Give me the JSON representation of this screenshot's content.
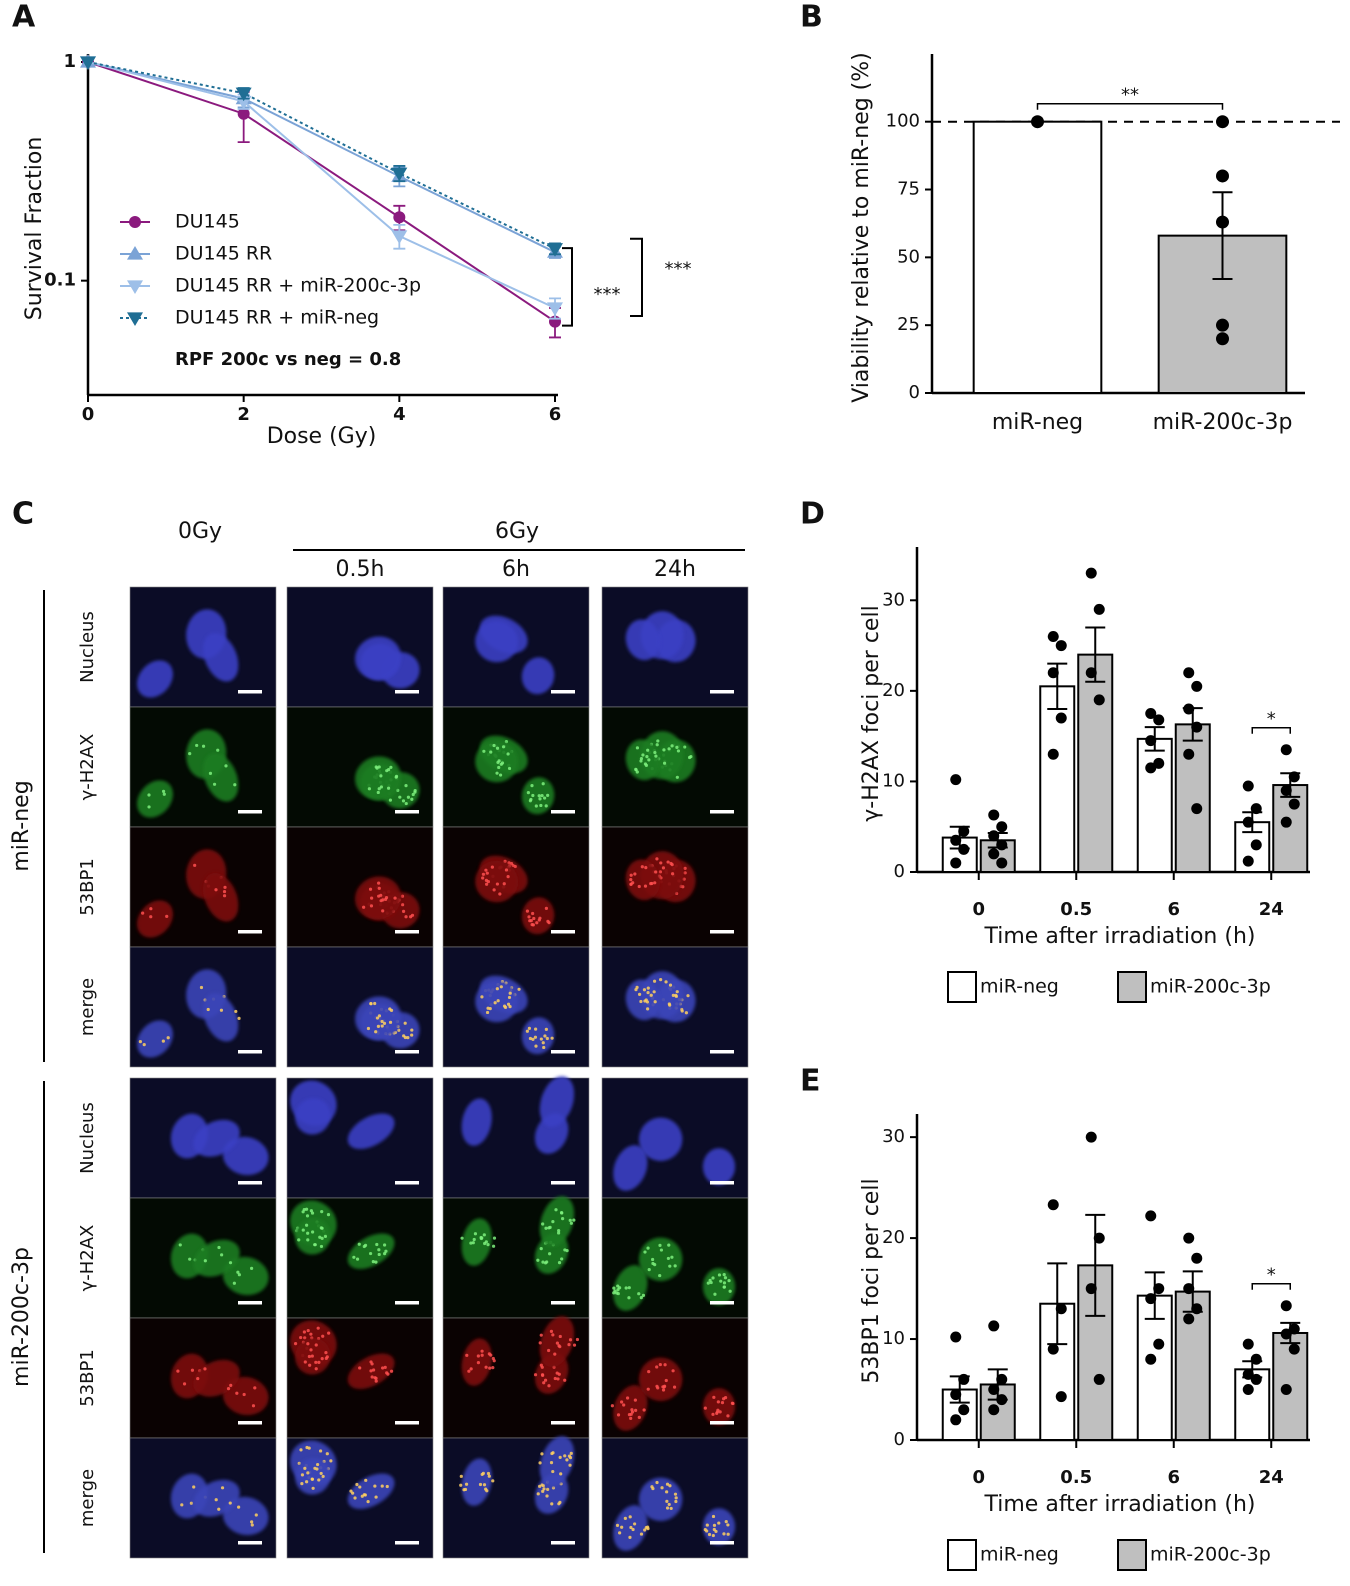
{
  "chart_data": [
    {
      "panel": "A",
      "type": "line",
      "log_y": true,
      "ylabel": "Survival Fraction",
      "xlabel": "Dose (Gy)",
      "x": [
        0,
        2,
        4,
        6
      ],
      "xlim": [
        0,
        6
      ],
      "xticks": [
        0,
        2,
        4,
        6
      ],
      "ylim": [
        0.03,
        1
      ],
      "yticks": [
        1,
        0.1
      ],
      "series": [
        {
          "name": "DU145",
          "color": "#8b1a7e",
          "marker": "circle",
          "dash": "solid",
          "values": [
            1,
            0.58,
            0.195,
            0.065
          ],
          "errors": [
            0,
            0.15,
            0.025,
            0.01
          ]
        },
        {
          "name": "DU145 RR",
          "color": "#7ba3d6",
          "marker": "triangle-up",
          "dash": "solid",
          "values": [
            1,
            0.68,
            0.3,
            0.135
          ],
          "errors": [
            0,
            0.06,
            0.03,
            0.008
          ]
        },
        {
          "name": "DU145 RR + miR-200c-3p",
          "color": "#9dbfe8",
          "marker": "triangle-down",
          "dash": "solid",
          "values": [
            1,
            0.66,
            0.16,
            0.075
          ],
          "errors": [
            0,
            0.05,
            0.02,
            0.008
          ]
        },
        {
          "name": "DU145 RR + miR-neg",
          "color": "#1f6e94",
          "marker": "triangle-down",
          "dash": "dotted",
          "values": [
            1,
            0.72,
            0.31,
            0.14
          ],
          "errors": [
            0,
            0.04,
            0.025,
            0.008
          ]
        }
      ],
      "annotations": [
        "***",
        "***",
        "RPF 200c vs neg = 0.8"
      ]
    },
    {
      "panel": "B",
      "type": "bar",
      "ylabel": "Viability relative to miR-neg (%)",
      "categories": [
        "miR-neg",
        "miR-200c-3p"
      ],
      "values": [
        100,
        58
      ],
      "errors": [
        0,
        16
      ],
      "points": [
        [
          100
        ],
        [
          100,
          80,
          63,
          25,
          20
        ]
      ],
      "colors": [
        "#ffffff",
        "#bfbfbf"
      ],
      "ylim": [
        0,
        122
      ],
      "yticks": [
        0,
        25,
        50,
        75,
        100
      ],
      "reference_line": 100,
      "annotations": [
        "**"
      ]
    },
    {
      "panel": "D",
      "type": "bar",
      "ylabel": "γ-H2AX foci per cell",
      "xlabel": "Time after irradiation (h)",
      "categories": [
        "0",
        "0.5",
        "6",
        "24"
      ],
      "ylim": [
        0,
        35
      ],
      "yticks": [
        0,
        10,
        20,
        30
      ],
      "series": [
        {
          "name": "miR-neg",
          "color": "#ffffff",
          "values": [
            3.8,
            20.5,
            14.7,
            5.5
          ],
          "errors": [
            1.2,
            2.5,
            1.3,
            1.1
          ],
          "points": [
            [
              10.2,
              4.5,
              3.5,
              2.5,
              1
            ],
            [
              26,
              25,
              22,
              17,
              13
            ],
            [
              17.5,
              16.8,
              14.5,
              12,
              11.5
            ],
            [
              9.5,
              7,
              5.5,
              3,
              1.2
            ]
          ]
        },
        {
          "name": "miR-200c-3p",
          "color": "#bfbfbf",
          "values": [
            3.5,
            24,
            16.3,
            9.6
          ],
          "errors": [
            0.8,
            3,
            1.8,
            1.3
          ],
          "points": [
            [
              6.3,
              5,
              4,
              3,
              2,
              1
            ],
            [
              33,
              29,
              22,
              19
            ],
            [
              22,
              20.5,
              18,
              16,
              13,
              7
            ],
            [
              13.5,
              10.5,
              9,
              7.5,
              5.5
            ]
          ]
        }
      ],
      "annotations": [
        "*"
      ]
    },
    {
      "panel": "E",
      "type": "bar",
      "ylabel": "53BP1 foci per cell",
      "xlabel": "Time after irradiation (h)",
      "categories": [
        "0",
        "0.5",
        "6",
        "24"
      ],
      "ylim": [
        0,
        31.5
      ],
      "yticks": [
        0,
        10,
        20,
        30
      ],
      "series": [
        {
          "name": "miR-neg",
          "color": "#ffffff",
          "values": [
            5,
            13.5,
            14.3,
            7
          ],
          "errors": [
            1.3,
            4,
            2.3,
            0.8
          ],
          "points": [
            [
              10.2,
              6,
              4.5,
              3,
              2
            ],
            [
              23.3,
              13,
              9,
              4.3
            ],
            [
              22.2,
              15,
              14,
              9.5,
              8
            ],
            [
              9.5,
              8,
              6.5,
              6,
              5
            ]
          ]
        },
        {
          "name": "miR-200c-3p",
          "color": "#bfbfbf",
          "values": [
            5.5,
            17.3,
            14.7,
            10.6
          ],
          "errors": [
            1.5,
            5,
            2,
            1
          ],
          "points": [
            [
              11.3,
              6,
              5,
              4,
              3
            ],
            [
              30,
              20,
              15,
              6
            ],
            [
              20,
              18,
              15,
              13,
              12
            ],
            [
              13.3,
              11,
              10.5,
              9,
              5
            ]
          ]
        }
      ],
      "annotations": [
        "*"
      ]
    }
  ],
  "image_panel": {
    "panel": "C",
    "doses": [
      "0Gy",
      "6Gy"
    ],
    "times": [
      "0.5h",
      "6h",
      "24h"
    ],
    "groups": [
      {
        "name": "miR-neg",
        "channels": [
          "Nucleus",
          "γ-H2AX",
          "53BP1",
          "merge"
        ]
      },
      {
        "name": "miR-200c-3p",
        "channels": [
          "Nucleus",
          "γ-H2AX",
          "53BP1",
          "merge"
        ]
      }
    ]
  }
}
